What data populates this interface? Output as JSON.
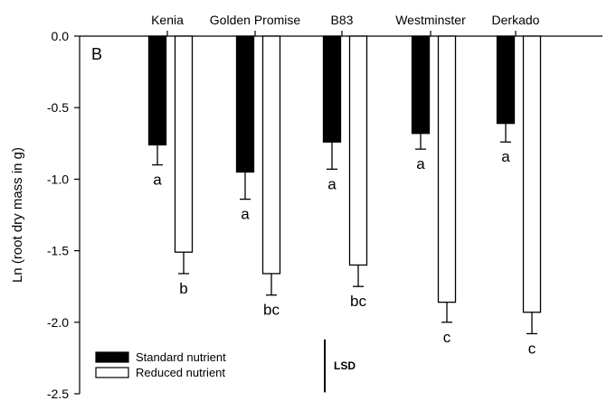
{
  "chart_data": {
    "type": "bar",
    "panel_label": "B",
    "ylabel": "Ln (root dry mass in g)",
    "ylim": [
      -2.5,
      0.0
    ],
    "yticks": [
      0.0,
      -0.5,
      -1.0,
      -1.5,
      -2.0,
      -2.5
    ],
    "ytick_labels": [
      "0.0",
      "-0.5",
      "-1.0",
      "-1.5",
      "-2.0",
      "-2.5"
    ],
    "x_position": "top",
    "grid": false,
    "legend_position": "bottom-left",
    "categories": [
      "Kenia",
      "Golden Promise",
      "B83",
      "Westminster",
      "Derkado"
    ],
    "series": [
      {
        "name": "Standard nutrient",
        "color": "#000000",
        "fill": "solid",
        "values": [
          -0.76,
          -0.95,
          -0.74,
          -0.68,
          -0.61
        ],
        "errors": [
          0.14,
          0.19,
          0.19,
          0.11,
          0.13
        ],
        "letters": [
          "a",
          "a",
          "a",
          "a",
          "a"
        ]
      },
      {
        "name": "Reduced nutrient",
        "color": "#ffffff",
        "fill": "hollow",
        "values": [
          -1.51,
          -1.66,
          -1.6,
          -1.86,
          -1.93
        ],
        "errors": [
          0.15,
          0.15,
          0.15,
          0.14,
          0.15
        ],
        "letters": [
          "b",
          "bc",
          "bc",
          "c",
          "c"
        ]
      }
    ],
    "lsd": {
      "label": "LSD",
      "value": 0.37
    }
  }
}
